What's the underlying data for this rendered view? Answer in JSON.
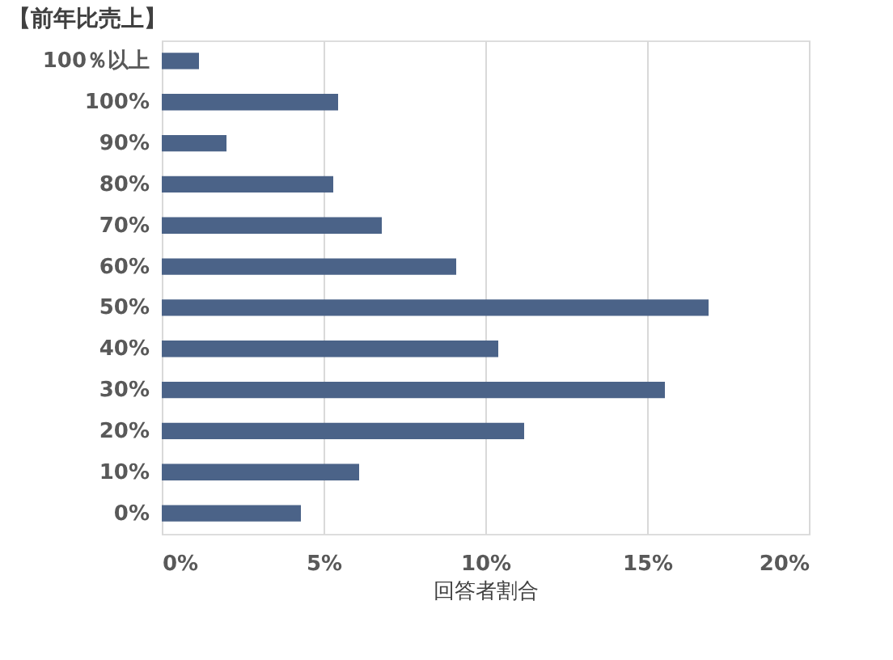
{
  "chart_data": {
    "type": "bar",
    "orientation": "horizontal",
    "title": "【前年比売上】",
    "xlabel": "回答者割合",
    "categories": [
      "100％以上",
      "100%",
      "90%",
      "80%",
      "70%",
      "60%",
      "50%",
      "40%",
      "30%",
      "20%",
      "10%",
      "0%"
    ],
    "values": [
      1.15,
      5.45,
      2.0,
      5.3,
      6.8,
      9.1,
      16.9,
      10.4,
      15.55,
      11.2,
      6.1,
      4.3
    ],
    "color": "#4b6388",
    "xlim": [
      0,
      20
    ],
    "xticks": [
      {
        "value": 0,
        "label": "0%"
      },
      {
        "value": 5,
        "label": "5%"
      },
      {
        "value": 10,
        "label": "10%"
      },
      {
        "value": 15,
        "label": "15%"
      },
      {
        "value": 20,
        "label": "20%"
      }
    ],
    "grid": "x"
  }
}
